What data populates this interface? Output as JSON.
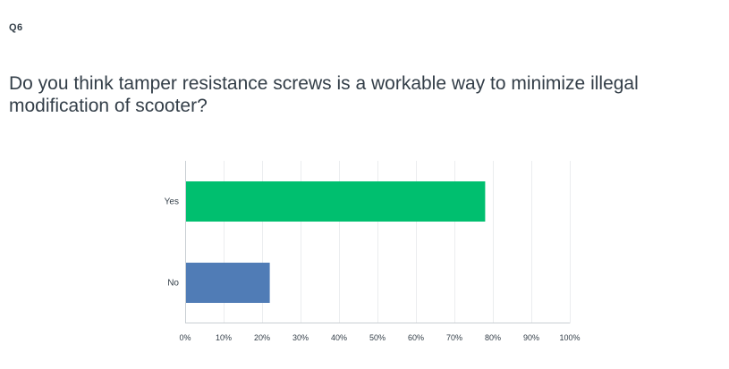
{
  "question": {
    "number": "Q6",
    "text": "Do you think tamper resistance screws is a workable way to minimize illegal modification of scooter?"
  },
  "chart_data": {
    "type": "bar",
    "orientation": "horizontal",
    "categories": [
      "Yes",
      "No"
    ],
    "values": [
      78,
      22
    ],
    "unit": "%",
    "xlim": [
      0,
      100
    ],
    "xticks": [
      "0%",
      "10%",
      "20%",
      "30%",
      "40%",
      "50%",
      "60%",
      "70%",
      "80%",
      "90%",
      "100%"
    ],
    "colors": [
      "#00bf6f",
      "#507cb6"
    ],
    "gridlines": true,
    "legend": "none"
  }
}
